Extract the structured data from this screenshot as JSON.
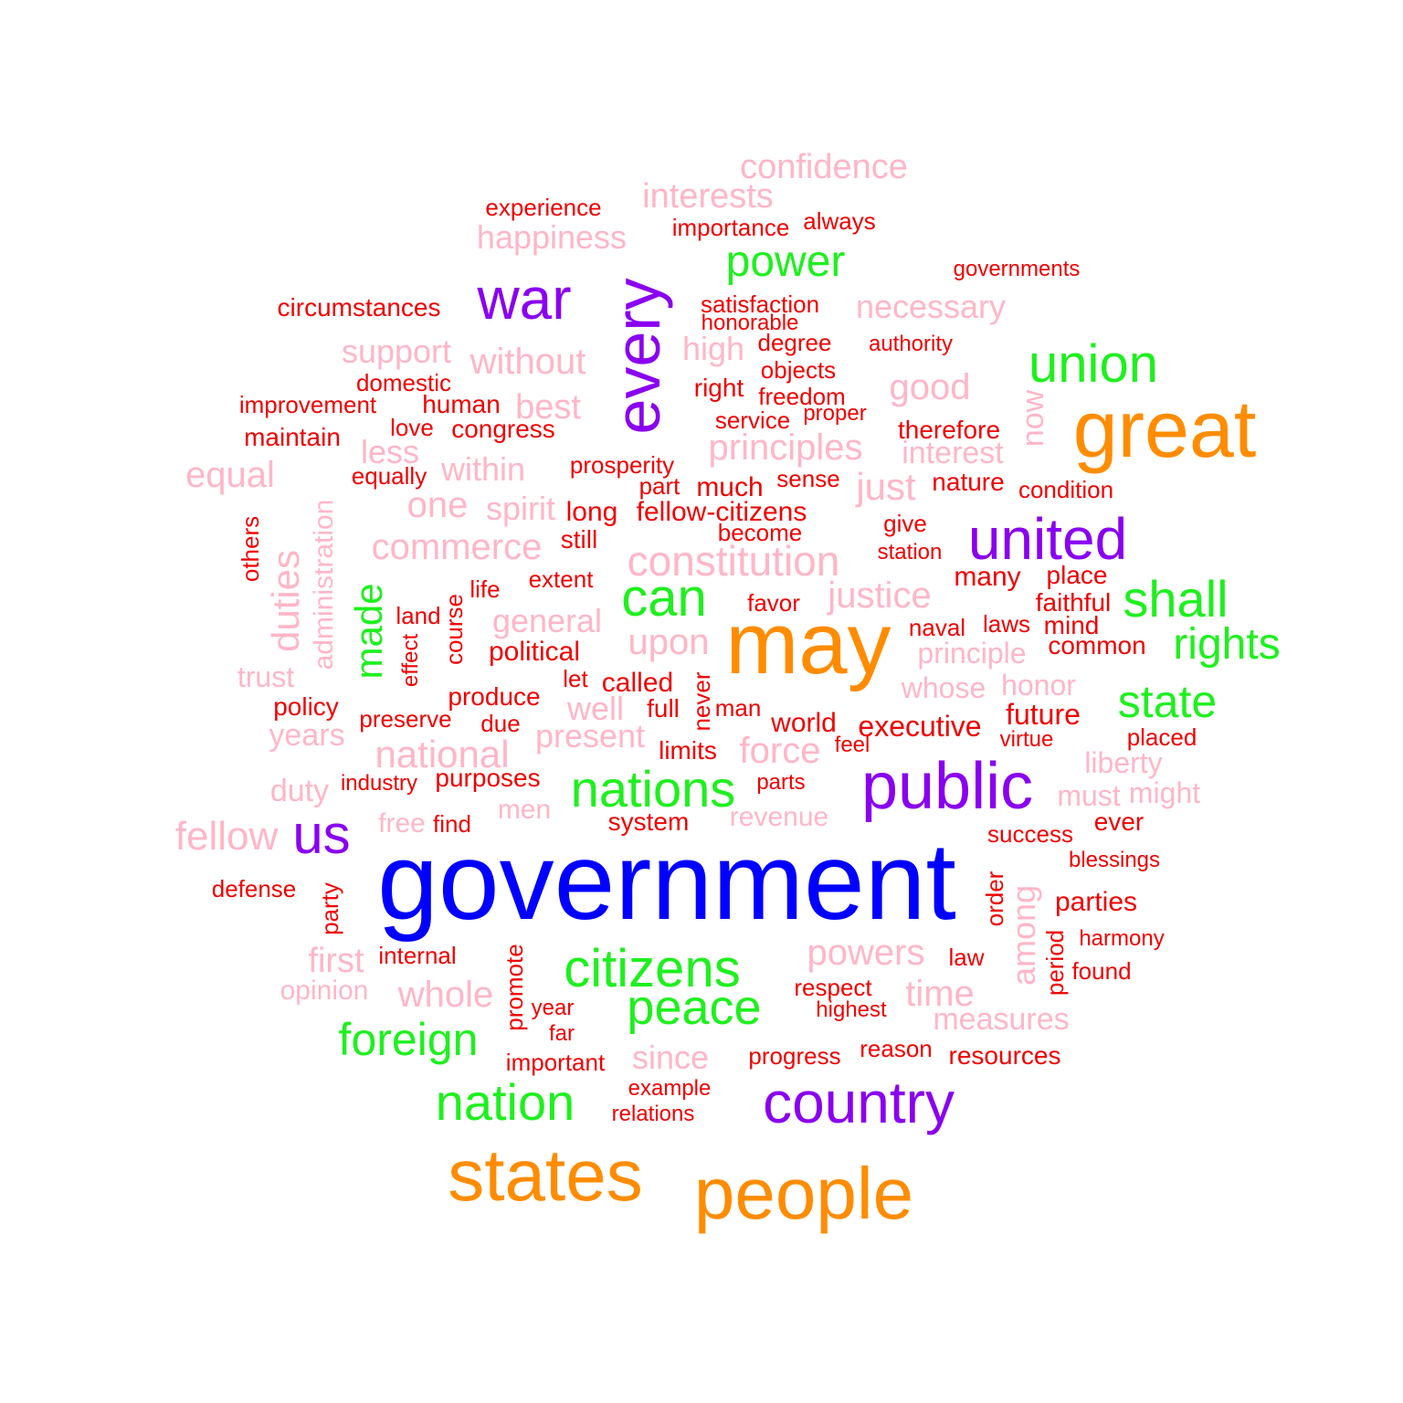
{
  "colors": {
    "tier1": "#0000ff",
    "tier2": "#ff8c00",
    "tier3": "#8a00f0",
    "tier4": "#1ef01e",
    "tier5": "#ffb6c8",
    "tier6": "#f00000"
  },
  "words": [
    {
      "text": "government",
      "weight": 1,
      "color": "tier1",
      "vertical": false
    },
    {
      "text": "may",
      "weight": 2,
      "color": "tier2",
      "vertical": false
    },
    {
      "text": "great",
      "weight": 2,
      "color": "tier2",
      "vertical": false
    },
    {
      "text": "states",
      "weight": 2,
      "color": "tier2",
      "vertical": false
    },
    {
      "text": "people",
      "weight": 2,
      "color": "tier2",
      "vertical": false
    },
    {
      "text": "public",
      "weight": 3,
      "color": "tier3",
      "vertical": false
    },
    {
      "text": "every",
      "weight": 3,
      "color": "tier3",
      "vertical": true
    },
    {
      "text": "war",
      "weight": 3,
      "color": "tier3",
      "vertical": false
    },
    {
      "text": "united",
      "weight": 3,
      "color": "tier3",
      "vertical": false
    },
    {
      "text": "country",
      "weight": 3,
      "color": "tier3",
      "vertical": false
    },
    {
      "text": "us",
      "weight": 3,
      "color": "tier3",
      "vertical": false
    },
    {
      "text": "union",
      "weight": 4,
      "color": "tier4",
      "vertical": false
    },
    {
      "text": "power",
      "weight": 4,
      "color": "tier4",
      "vertical": false
    },
    {
      "text": "can",
      "weight": 4,
      "color": "tier4",
      "vertical": false
    },
    {
      "text": "shall",
      "weight": 4,
      "color": "tier4",
      "vertical": false
    },
    {
      "text": "rights",
      "weight": 4,
      "color": "tier4",
      "vertical": false
    },
    {
      "text": "state",
      "weight": 4,
      "color": "tier4",
      "vertical": false
    },
    {
      "text": "nations",
      "weight": 4,
      "color": "tier4",
      "vertical": false
    },
    {
      "text": "citizens",
      "weight": 4,
      "color": "tier4",
      "vertical": false
    },
    {
      "text": "peace",
      "weight": 4,
      "color": "tier4",
      "vertical": false
    },
    {
      "text": "foreign",
      "weight": 4,
      "color": "tier4",
      "vertical": false
    },
    {
      "text": "nation",
      "weight": 4,
      "color": "tier4",
      "vertical": false
    },
    {
      "text": "made",
      "weight": 4,
      "color": "tier4",
      "vertical": true
    },
    {
      "text": "confidence",
      "weight": 5,
      "color": "tier5",
      "vertical": false
    },
    {
      "text": "interests",
      "weight": 5,
      "color": "tier5",
      "vertical": false
    },
    {
      "text": "happiness",
      "weight": 5,
      "color": "tier5",
      "vertical": false
    },
    {
      "text": "necessary",
      "weight": 5,
      "color": "tier5",
      "vertical": false
    },
    {
      "text": "support",
      "weight": 5,
      "color": "tier5",
      "vertical": false
    },
    {
      "text": "without",
      "weight": 5,
      "color": "tier5",
      "vertical": false
    },
    {
      "text": "high",
      "weight": 5,
      "color": "tier5",
      "vertical": false
    },
    {
      "text": "good",
      "weight": 5,
      "color": "tier5",
      "vertical": false
    },
    {
      "text": "best",
      "weight": 5,
      "color": "tier5",
      "vertical": false
    },
    {
      "text": "principles",
      "weight": 5,
      "color": "tier5",
      "vertical": false
    },
    {
      "text": "interest",
      "weight": 5,
      "color": "tier5",
      "vertical": false
    },
    {
      "text": "less",
      "weight": 5,
      "color": "tier5",
      "vertical": false
    },
    {
      "text": "equal",
      "weight": 5,
      "color": "tier5",
      "vertical": false
    },
    {
      "text": "within",
      "weight": 5,
      "color": "tier5",
      "vertical": false
    },
    {
      "text": "just",
      "weight": 5,
      "color": "tier5",
      "vertical": false
    },
    {
      "text": "one",
      "weight": 5,
      "color": "tier5",
      "vertical": false
    },
    {
      "text": "spirit",
      "weight": 5,
      "color": "tier5",
      "vertical": false
    },
    {
      "text": "commerce",
      "weight": 5,
      "color": "tier5",
      "vertical": false
    },
    {
      "text": "constitution",
      "weight": 5,
      "color": "tier5",
      "vertical": false
    },
    {
      "text": "justice",
      "weight": 5,
      "color": "tier5",
      "vertical": false
    },
    {
      "text": "general",
      "weight": 5,
      "color": "tier5",
      "vertical": false
    },
    {
      "text": "upon",
      "weight": 5,
      "color": "tier5",
      "vertical": false
    },
    {
      "text": "principle",
      "weight": 5,
      "color": "tier5",
      "vertical": false
    },
    {
      "text": "trust",
      "weight": 5,
      "color": "tier5",
      "vertical": false
    },
    {
      "text": "whose",
      "weight": 5,
      "color": "tier5",
      "vertical": false
    },
    {
      "text": "honor",
      "weight": 5,
      "color": "tier5",
      "vertical": false
    },
    {
      "text": "well",
      "weight": 5,
      "color": "tier5",
      "vertical": false
    },
    {
      "text": "years",
      "weight": 5,
      "color": "tier5",
      "vertical": false
    },
    {
      "text": "present",
      "weight": 5,
      "color": "tier5",
      "vertical": false
    },
    {
      "text": "national",
      "weight": 5,
      "color": "tier5",
      "vertical": false
    },
    {
      "text": "force",
      "weight": 5,
      "color": "tier5",
      "vertical": false
    },
    {
      "text": "liberty",
      "weight": 5,
      "color": "tier5",
      "vertical": false
    },
    {
      "text": "duty",
      "weight": 5,
      "color": "tier5",
      "vertical": false
    },
    {
      "text": "must",
      "weight": 5,
      "color": "tier5",
      "vertical": false
    },
    {
      "text": "might",
      "weight": 5,
      "color": "tier5",
      "vertical": false
    },
    {
      "text": "men",
      "weight": 5,
      "color": "tier5",
      "vertical": false
    },
    {
      "text": "revenue",
      "weight": 5,
      "color": "tier5",
      "vertical": false
    },
    {
      "text": "free",
      "weight": 5,
      "color": "tier5",
      "vertical": false
    },
    {
      "text": "fellow",
      "weight": 5,
      "color": "tier5",
      "vertical": false
    },
    {
      "text": "powers",
      "weight": 5,
      "color": "tier5",
      "vertical": false
    },
    {
      "text": "first",
      "weight": 5,
      "color": "tier5",
      "vertical": false
    },
    {
      "text": "opinion",
      "weight": 5,
      "color": "tier5",
      "vertical": false
    },
    {
      "text": "whole",
      "weight": 5,
      "color": "tier5",
      "vertical": false
    },
    {
      "text": "time",
      "weight": 5,
      "color": "tier5",
      "vertical": false
    },
    {
      "text": "measures",
      "weight": 5,
      "color": "tier5",
      "vertical": false
    },
    {
      "text": "since",
      "weight": 5,
      "color": "tier5",
      "vertical": false
    },
    {
      "text": "now",
      "weight": 5,
      "color": "tier5",
      "vertical": true
    },
    {
      "text": "duties",
      "weight": 5,
      "color": "tier5",
      "vertical": true
    },
    {
      "text": "administration",
      "weight": 5,
      "color": "tier5",
      "vertical": true
    },
    {
      "text": "among",
      "weight": 5,
      "color": "tier5",
      "vertical": true
    },
    {
      "text": "experience",
      "weight": 6,
      "color": "tier6",
      "vertical": false
    },
    {
      "text": "importance",
      "weight": 6,
      "color": "tier6",
      "vertical": false
    },
    {
      "text": "always",
      "weight": 6,
      "color": "tier6",
      "vertical": false
    },
    {
      "text": "governments",
      "weight": 6,
      "color": "tier6",
      "vertical": false
    },
    {
      "text": "circumstances",
      "weight": 6,
      "color": "tier6",
      "vertical": false
    },
    {
      "text": "satisfaction",
      "weight": 6,
      "color": "tier6",
      "vertical": false
    },
    {
      "text": "honorable",
      "weight": 6,
      "color": "tier6",
      "vertical": false
    },
    {
      "text": "degree",
      "weight": 6,
      "color": "tier6",
      "vertical": false
    },
    {
      "text": "authority",
      "weight": 6,
      "color": "tier6",
      "vertical": false
    },
    {
      "text": "objects",
      "weight": 6,
      "color": "tier6",
      "vertical": false
    },
    {
      "text": "domestic",
      "weight": 6,
      "color": "tier6",
      "vertical": false
    },
    {
      "text": "right",
      "weight": 6,
      "color": "tier6",
      "vertical": false
    },
    {
      "text": "freedom",
      "weight": 6,
      "color": "tier6",
      "vertical": false
    },
    {
      "text": "improvement",
      "weight": 6,
      "color": "tier6",
      "vertical": false
    },
    {
      "text": "human",
      "weight": 6,
      "color": "tier6",
      "vertical": false
    },
    {
      "text": "proper",
      "weight": 6,
      "color": "tier6",
      "vertical": false
    },
    {
      "text": "service",
      "weight": 6,
      "color": "tier6",
      "vertical": false
    },
    {
      "text": "love",
      "weight": 6,
      "color": "tier6",
      "vertical": false
    },
    {
      "text": "congress",
      "weight": 6,
      "color": "tier6",
      "vertical": false
    },
    {
      "text": "therefore",
      "weight": 6,
      "color": "tier6",
      "vertical": false
    },
    {
      "text": "maintain",
      "weight": 6,
      "color": "tier6",
      "vertical": false
    },
    {
      "text": "prosperity",
      "weight": 6,
      "color": "tier6",
      "vertical": false
    },
    {
      "text": "equally",
      "weight": 6,
      "color": "tier6",
      "vertical": false
    },
    {
      "text": "part",
      "weight": 6,
      "color": "tier6",
      "vertical": false
    },
    {
      "text": "much",
      "weight": 6,
      "color": "tier6",
      "vertical": false
    },
    {
      "text": "sense",
      "weight": 6,
      "color": "tier6",
      "vertical": false
    },
    {
      "text": "nature",
      "weight": 6,
      "color": "tier6",
      "vertical": false
    },
    {
      "text": "condition",
      "weight": 6,
      "color": "tier6",
      "vertical": false
    },
    {
      "text": "long",
      "weight": 6,
      "color": "tier6",
      "vertical": false
    },
    {
      "text": "fellow-citizens",
      "weight": 6,
      "color": "tier6",
      "vertical": false
    },
    {
      "text": "become",
      "weight": 6,
      "color": "tier6",
      "vertical": false
    },
    {
      "text": "give",
      "weight": 6,
      "color": "tier6",
      "vertical": false
    },
    {
      "text": "still",
      "weight": 6,
      "color": "tier6",
      "vertical": false
    },
    {
      "text": "station",
      "weight": 6,
      "color": "tier6",
      "vertical": false
    },
    {
      "text": "extent",
      "weight": 6,
      "color": "tier6",
      "vertical": false
    },
    {
      "text": "many",
      "weight": 6,
      "color": "tier6",
      "vertical": false
    },
    {
      "text": "place",
      "weight": 6,
      "color": "tier6",
      "vertical": false
    },
    {
      "text": "life",
      "weight": 6,
      "color": "tier6",
      "vertical": false
    },
    {
      "text": "favor",
      "weight": 6,
      "color": "tier6",
      "vertical": false
    },
    {
      "text": "faithful",
      "weight": 6,
      "color": "tier6",
      "vertical": false
    },
    {
      "text": "land",
      "weight": 6,
      "color": "tier6",
      "vertical": false
    },
    {
      "text": "naval",
      "weight": 6,
      "color": "tier6",
      "vertical": false
    },
    {
      "text": "laws",
      "weight": 6,
      "color": "tier6",
      "vertical": false
    },
    {
      "text": "mind",
      "weight": 6,
      "color": "tier6",
      "vertical": false
    },
    {
      "text": "common",
      "weight": 6,
      "color": "tier6",
      "vertical": false
    },
    {
      "text": "political",
      "weight": 6,
      "color": "tier6",
      "vertical": false
    },
    {
      "text": "let",
      "weight": 6,
      "color": "tier6",
      "vertical": false
    },
    {
      "text": "called",
      "weight": 6,
      "color": "tier6",
      "vertical": false
    },
    {
      "text": "policy",
      "weight": 6,
      "color": "tier6",
      "vertical": false
    },
    {
      "text": "produce",
      "weight": 6,
      "color": "tier6",
      "vertical": false
    },
    {
      "text": "full",
      "weight": 6,
      "color": "tier6",
      "vertical": false
    },
    {
      "text": "man",
      "weight": 6,
      "color": "tier6",
      "vertical": false
    },
    {
      "text": "preserve",
      "weight": 6,
      "color": "tier6",
      "vertical": false
    },
    {
      "text": "due",
      "weight": 6,
      "color": "tier6",
      "vertical": false
    },
    {
      "text": "world",
      "weight": 6,
      "color": "tier6",
      "vertical": false
    },
    {
      "text": "executive",
      "weight": 6,
      "color": "tier6",
      "vertical": false
    },
    {
      "text": "future",
      "weight": 6,
      "color": "tier6",
      "vertical": false
    },
    {
      "text": "virtue",
      "weight": 6,
      "color": "tier6",
      "vertical": false
    },
    {
      "text": "placed",
      "weight": 6,
      "color": "tier6",
      "vertical": false
    },
    {
      "text": "limits",
      "weight": 6,
      "color": "tier6",
      "vertical": false
    },
    {
      "text": "feel",
      "weight": 6,
      "color": "tier6",
      "vertical": false
    },
    {
      "text": "industry",
      "weight": 6,
      "color": "tier6",
      "vertical": false
    },
    {
      "text": "purposes",
      "weight": 6,
      "color": "tier6",
      "vertical": false
    },
    {
      "text": "parts",
      "weight": 6,
      "color": "tier6",
      "vertical": false
    },
    {
      "text": "find",
      "weight": 6,
      "color": "tier6",
      "vertical": false
    },
    {
      "text": "system",
      "weight": 6,
      "color": "tier6",
      "vertical": false
    },
    {
      "text": "success",
      "weight": 6,
      "color": "tier6",
      "vertical": false
    },
    {
      "text": "ever",
      "weight": 6,
      "color": "tier6",
      "vertical": false
    },
    {
      "text": "blessings",
      "weight": 6,
      "color": "tier6",
      "vertical": false
    },
    {
      "text": "defense",
      "weight": 6,
      "color": "tier6",
      "vertical": false
    },
    {
      "text": "parties",
      "weight": 6,
      "color": "tier6",
      "vertical": false
    },
    {
      "text": "harmony",
      "weight": 6,
      "color": "tier6",
      "vertical": false
    },
    {
      "text": "internal",
      "weight": 6,
      "color": "tier6",
      "vertical": false
    },
    {
      "text": "law",
      "weight": 6,
      "color": "tier6",
      "vertical": false
    },
    {
      "text": "found",
      "weight": 6,
      "color": "tier6",
      "vertical": false
    },
    {
      "text": "respect",
      "weight": 6,
      "color": "tier6",
      "vertical": false
    },
    {
      "text": "year",
      "weight": 6,
      "color": "tier6",
      "vertical": false
    },
    {
      "text": "highest",
      "weight": 6,
      "color": "tier6",
      "vertical": false
    },
    {
      "text": "far",
      "weight": 6,
      "color": "tier6",
      "vertical": false
    },
    {
      "text": "reason",
      "weight": 6,
      "color": "tier6",
      "vertical": false
    },
    {
      "text": "progress",
      "weight": 6,
      "color": "tier6",
      "vertical": false
    },
    {
      "text": "resources",
      "weight": 6,
      "color": "tier6",
      "vertical": false
    },
    {
      "text": "important",
      "weight": 6,
      "color": "tier6",
      "vertical": false
    },
    {
      "text": "example",
      "weight": 6,
      "color": "tier6",
      "vertical": false
    },
    {
      "text": "relations",
      "weight": 6,
      "color": "tier6",
      "vertical": false
    },
    {
      "text": "others",
      "weight": 6,
      "color": "tier6",
      "vertical": true
    },
    {
      "text": "course",
      "weight": 6,
      "color": "tier6",
      "vertical": true
    },
    {
      "text": "effect",
      "weight": 6,
      "color": "tier6",
      "vertical": true
    },
    {
      "text": "never",
      "weight": 6,
      "color": "tier6",
      "vertical": true
    },
    {
      "text": "party",
      "weight": 6,
      "color": "tier6",
      "vertical": true
    },
    {
      "text": "order",
      "weight": 6,
      "color": "tier6",
      "vertical": true
    },
    {
      "text": "period",
      "weight": 6,
      "color": "tier6",
      "vertical": true
    },
    {
      "text": "promote",
      "weight": 6,
      "color": "tier6",
      "vertical": true
    }
  ]
}
